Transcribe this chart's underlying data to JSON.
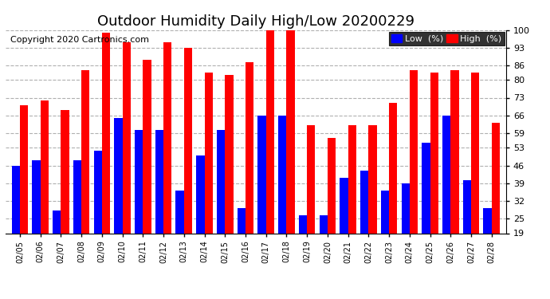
{
  "title": "Outdoor Humidity Daily High/Low 20200229",
  "copyright": "Copyright 2020 Cartronics.com",
  "dates": [
    "02/05",
    "02/06",
    "02/07",
    "02/08",
    "02/09",
    "02/10",
    "02/11",
    "02/12",
    "02/13",
    "02/14",
    "02/15",
    "02/16",
    "02/17",
    "02/18",
    "02/19",
    "02/20",
    "02/21",
    "02/22",
    "02/23",
    "02/24",
    "02/25",
    "02/26",
    "02/27",
    "02/28"
  ],
  "high": [
    70,
    72,
    68,
    84,
    99,
    95,
    88,
    95,
    93,
    83,
    82,
    87,
    100,
    100,
    62,
    57,
    62,
    62,
    71,
    84,
    83,
    84,
    83,
    63
  ],
  "low": [
    46,
    48,
    28,
    48,
    52,
    65,
    60,
    60,
    36,
    50,
    60,
    29,
    66,
    66,
    26,
    26,
    41,
    44,
    36,
    39,
    55,
    66,
    40,
    29
  ],
  "high_color": "#ff0000",
  "low_color": "#0000ff",
  "bg_color": "#ffffff",
  "grid_color": "#b0b0b0",
  "ylim_min": 19,
  "ylim_max": 100,
  "yticks": [
    19,
    25,
    32,
    39,
    46,
    53,
    59,
    66,
    73,
    80,
    86,
    93,
    100
  ],
  "title_fontsize": 13,
  "copyright_fontsize": 8,
  "bar_width": 0.4,
  "legend_low_label": "Low  (%)",
  "legend_high_label": "High  (%)"
}
